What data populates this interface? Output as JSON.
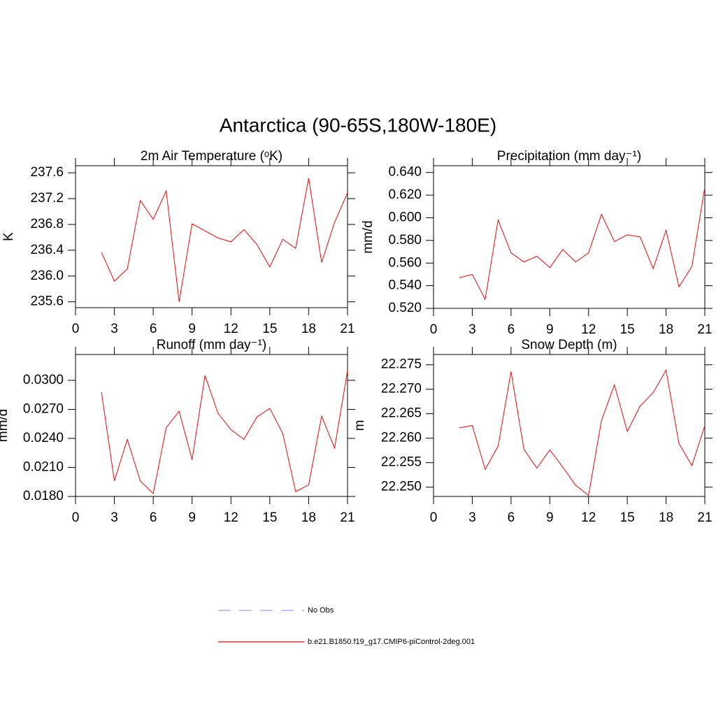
{
  "title": "Antarctica (90-65S,180W-180E)",
  "legend": [
    {
      "name": "No Obs",
      "color": "#9999ff",
      "dash": true
    },
    {
      "name": "b.e21.B1850.f19_g17.CMIP6-piControl-2deg.001",
      "color": "#ff0000",
      "dash": false
    }
  ],
  "chart_data": [
    {
      "type": "line",
      "title": "2m Air Temperature (ᵒK)",
      "y_label": "K",
      "x": [
        2,
        3,
        4,
        5,
        6,
        7,
        8,
        9,
        10,
        11,
        12,
        13,
        14,
        15,
        16,
        17,
        18,
        19,
        20,
        21
      ],
      "values": [
        236.37,
        235.92,
        236.11,
        237.17,
        236.88,
        237.32,
        235.6,
        236.81,
        236.7,
        236.59,
        236.53,
        236.72,
        236.49,
        236.14,
        236.57,
        236.43,
        237.52,
        236.21,
        236.83,
        237.29
      ],
      "color": "#ff0000",
      "xlim": [
        0,
        21
      ],
      "xticks": [
        0,
        3,
        6,
        9,
        12,
        15,
        18,
        21
      ],
      "ylim": [
        235.51,
        237.71
      ],
      "yticks": [
        {
          "value": 235.6,
          "label": "235.6"
        },
        {
          "value": 236.0,
          "label": "236.0"
        },
        236.4,
        236.8,
        237.2,
        237.6
      ]
    },
    {
      "type": "line",
      "title": "Precipitation (mm day⁻¹)",
      "y_label": "mm/d",
      "x": [
        2,
        3,
        4,
        5,
        6,
        7,
        8,
        9,
        10,
        11,
        12,
        13,
        14,
        15,
        16,
        17,
        18,
        19,
        20,
        21
      ],
      "values": [
        0.547,
        0.55,
        0.528,
        0.598,
        0.569,
        0.561,
        0.566,
        0.556,
        0.572,
        0.561,
        0.569,
        0.603,
        0.579,
        0.585,
        0.583,
        0.555,
        0.589,
        0.539,
        0.557,
        0.627
      ],
      "color": "#ff0000",
      "xlim": [
        0,
        21
      ],
      "xticks": [
        0,
        3,
        6,
        9,
        12,
        15,
        18,
        21
      ],
      "ylim": [
        0.52,
        0.646
      ],
      "yticks": [
        {
          "value": 0.52,
          "label": "0.520"
        },
        {
          "value": 0.54,
          "label": "0.540"
        },
        {
          "value": 0.56,
          "label": "0.560"
        },
        {
          "value": 0.58,
          "label": "0.580"
        },
        {
          "value": 0.6,
          "label": "0.600"
        },
        {
          "value": 0.62,
          "label": "0.620"
        },
        {
          "value": 0.64,
          "label": "0.640"
        }
      ]
    },
    {
      "type": "line",
      "title": "Runoff (mm day⁻¹)",
      "y_label": "mm/d",
      "x": [
        2,
        3,
        4,
        5,
        6,
        7,
        8,
        9,
        10,
        11,
        12,
        13,
        14,
        15,
        16,
        17,
        18,
        19,
        20,
        21
      ],
      "values": [
        0.0288,
        0.0196,
        0.0239,
        0.0196,
        0.0183,
        0.0251,
        0.0268,
        0.0218,
        0.0305,
        0.0266,
        0.0249,
        0.0239,
        0.0262,
        0.0271,
        0.0245,
        0.0185,
        0.0192,
        0.0263,
        0.023,
        0.031
      ],
      "color": "#ff0000",
      "xlim": [
        0,
        21
      ],
      "xticks": [
        0,
        3,
        6,
        9,
        12,
        15,
        18,
        21
      ],
      "ylim": [
        0.018,
        0.03267
      ],
      "yticks": [
        {
          "value": 0.018,
          "label": "0.0180"
        },
        {
          "value": 0.021,
          "label": "0.0210"
        },
        {
          "value": 0.024,
          "label": "0.0240"
        },
        {
          "value": 0.027,
          "label": "0.0270"
        },
        {
          "value": 0.03,
          "label": "0.0300"
        }
      ]
    },
    {
      "type": "line",
      "title": "Snow Depth (m)",
      "y_label": "m",
      "x": [
        2,
        3,
        4,
        5,
        6,
        7,
        8,
        9,
        10,
        11,
        12,
        13,
        14,
        15,
        16,
        17,
        18,
        19,
        20,
        21
      ],
      "values": [
        22.2621,
        22.2626,
        22.2536,
        22.2584,
        22.2736,
        22.2577,
        22.2539,
        22.2576,
        22.2541,
        22.2504,
        22.2483,
        22.2636,
        22.2709,
        22.2614,
        22.2666,
        22.2693,
        22.2739,
        22.2589,
        22.2544,
        22.2626
      ],
      "color": "#ff0000",
      "xlim": [
        0,
        21
      ],
      "xticks": [
        0,
        3,
        6,
        9,
        12,
        15,
        18,
        21
      ],
      "ylim": [
        22.2481,
        22.2771
      ],
      "yticks": [
        {
          "value": 22.25,
          "label": "22.250"
        },
        22.255,
        {
          "value": 22.26,
          "label": "22.260"
        },
        22.265,
        {
          "value": 22.27,
          "label": "22.270"
        },
        22.275
      ]
    }
  ]
}
